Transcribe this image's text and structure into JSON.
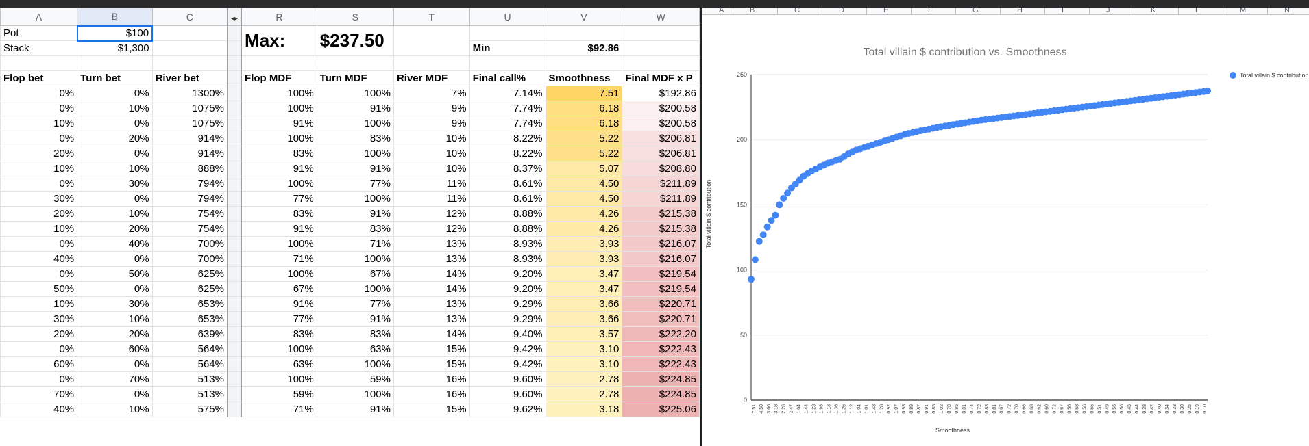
{
  "left_sheet": {
    "columns": [
      "A",
      "B",
      "C",
      "R",
      "S",
      "T",
      "U",
      "V",
      "W"
    ],
    "top": {
      "pot_label": "Pot",
      "pot_value": "$100",
      "stack_label": "Stack",
      "stack_value": "$1,300",
      "max_label": "Max:",
      "max_value": "$237.50",
      "min_label": "Min",
      "min_value": "$92.86"
    },
    "headers": [
      "Flop bet",
      "Turn bet",
      "River bet",
      "Flop MDF",
      "Turn MDF",
      "River MDF",
      "Final call%",
      "Smoothness",
      "Final MDF x P"
    ],
    "rows": [
      [
        "0%",
        "0%",
        "1300%",
        "100%",
        "100%",
        "7%",
        "7.14%",
        "7.51",
        "$192.86"
      ],
      [
        "0%",
        "10%",
        "1075%",
        "100%",
        "91%",
        "9%",
        "7.74%",
        "6.18",
        "$200.58"
      ],
      [
        "10%",
        "0%",
        "1075%",
        "91%",
        "100%",
        "9%",
        "7.74%",
        "6.18",
        "$200.58"
      ],
      [
        "0%",
        "20%",
        "914%",
        "100%",
        "83%",
        "10%",
        "8.22%",
        "5.22",
        "$206.81"
      ],
      [
        "20%",
        "0%",
        "914%",
        "83%",
        "100%",
        "10%",
        "8.22%",
        "5.22",
        "$206.81"
      ],
      [
        "10%",
        "10%",
        "888%",
        "91%",
        "91%",
        "10%",
        "8.37%",
        "5.07",
        "$208.80"
      ],
      [
        "0%",
        "30%",
        "794%",
        "100%",
        "77%",
        "11%",
        "8.61%",
        "4.50",
        "$211.89"
      ],
      [
        "30%",
        "0%",
        "794%",
        "77%",
        "100%",
        "11%",
        "8.61%",
        "4.50",
        "$211.89"
      ],
      [
        "20%",
        "10%",
        "754%",
        "83%",
        "91%",
        "12%",
        "8.88%",
        "4.26",
        "$215.38"
      ],
      [
        "10%",
        "20%",
        "754%",
        "91%",
        "83%",
        "12%",
        "8.88%",
        "4.26",
        "$215.38"
      ],
      [
        "0%",
        "40%",
        "700%",
        "100%",
        "71%",
        "13%",
        "8.93%",
        "3.93",
        "$216.07"
      ],
      [
        "40%",
        "0%",
        "700%",
        "71%",
        "100%",
        "13%",
        "8.93%",
        "3.93",
        "$216.07"
      ],
      [
        "0%",
        "50%",
        "625%",
        "100%",
        "67%",
        "14%",
        "9.20%",
        "3.47",
        "$219.54"
      ],
      [
        "50%",
        "0%",
        "625%",
        "67%",
        "100%",
        "14%",
        "9.20%",
        "3.47",
        "$219.54"
      ],
      [
        "10%",
        "30%",
        "653%",
        "91%",
        "77%",
        "13%",
        "9.29%",
        "3.66",
        "$220.71"
      ],
      [
        "30%",
        "10%",
        "653%",
        "77%",
        "91%",
        "13%",
        "9.29%",
        "3.66",
        "$220.71"
      ],
      [
        "20%",
        "20%",
        "639%",
        "83%",
        "83%",
        "14%",
        "9.40%",
        "3.57",
        "$222.20"
      ],
      [
        "0%",
        "60%",
        "564%",
        "100%",
        "63%",
        "15%",
        "9.42%",
        "3.10",
        "$222.43"
      ],
      [
        "60%",
        "0%",
        "564%",
        "63%",
        "100%",
        "15%",
        "9.42%",
        "3.10",
        "$222.43"
      ],
      [
        "0%",
        "70%",
        "513%",
        "100%",
        "59%",
        "16%",
        "9.60%",
        "2.78",
        "$224.85"
      ],
      [
        "70%",
        "0%",
        "513%",
        "59%",
        "100%",
        "16%",
        "9.60%",
        "2.78",
        "$224.85"
      ],
      [
        "40%",
        "10%",
        "575%",
        "71%",
        "91%",
        "15%",
        "9.62%",
        "3.18",
        "$225.06"
      ]
    ],
    "colors": {
      "smooth": [
        "#ffd666",
        "#ffdf80",
        "#ffdf80",
        "#ffe08a",
        "#ffe08a",
        "#ffe9a6",
        "#ffe9a6",
        "#ffe9a6",
        "#ffeaa8",
        "#ffeaa8",
        "#ffeeb3",
        "#ffeeb3",
        "#fff0b8",
        "#fff0b8",
        "#ffefb5",
        "#ffefb5",
        "#fff0b8",
        "#fff2bd",
        "#fff2bd",
        "#fff2bf",
        "#fff2bf",
        "#fff1ba"
      ],
      "mdf": [
        "#ffffff",
        "#fcefef",
        "#fcefef",
        "#f8e0e0",
        "#f8e0e0",
        "#f7dcdc",
        "#f6d5d5",
        "#f6d5d5",
        "#f4cbcb",
        "#f4cbcb",
        "#f4c9c9",
        "#f4c9c9",
        "#f2c0c0",
        "#f2c0c0",
        "#f1bdbd",
        "#f1bdbd",
        "#f0b9b9",
        "#f0b8b8",
        "#f0b8b8",
        "#efb2b2",
        "#efb2b2",
        "#eeb1b1"
      ]
    }
  },
  "right_sheet": {
    "columns": [
      "A",
      "B",
      "C",
      "D",
      "E",
      "F",
      "G",
      "H",
      "I",
      "J",
      "K",
      "L",
      "M",
      "N"
    ]
  },
  "chart_data": {
    "type": "scatter",
    "title": "Total villain $ contribution vs. Smoothness",
    "xlabel": "Smoothness",
    "ylabel": "Total villain $ contribution",
    "legend": [
      "Total villain $ contribution"
    ],
    "legend_position": "top-right",
    "ylim": [
      0,
      250
    ],
    "yticks": [
      0,
      50,
      100,
      150,
      200,
      250
    ],
    "grid": true,
    "color": "#4285f4",
    "x_tick_labels": [
      "7.51",
      "4.50",
      "3.66",
      "3.18",
      "2.28",
      "2.47",
      "1.64",
      "1.44",
      "1.23",
      "1.98",
      "1.13",
      "1.36",
      "1.26",
      "1.12",
      "1.04",
      "1.01",
      "1.43",
      "1.28",
      "0.92",
      "1.07",
      "0.93",
      "0.89",
      "0.87",
      "0.91",
      "0.85",
      "1.02",
      "0.78",
      "0.85",
      "0.81",
      "0.74",
      "0.72",
      "0.83",
      "0.81",
      "0.67",
      "0.72",
      "0.70",
      "0.66",
      "0.63",
      "0.62",
      "0.60",
      "0.72",
      "0.67",
      "0.56",
      "0.68",
      "0.56",
      "0.55",
      "0.51",
      "0.49",
      "0.56",
      "0.56",
      "0.45",
      "0.44",
      "0.38",
      "0.42",
      "0.40",
      "0.34",
      "0.33",
      "0.30",
      "0.25",
      "0.19",
      "0.10"
    ],
    "points_y": [
      92.86,
      108,
      122,
      127,
      133,
      138,
      142,
      150,
      155,
      159,
      163,
      166,
      169,
      172,
      174,
      176,
      177.5,
      179,
      180.5,
      182,
      183,
      184,
      185,
      187,
      189,
      190.5,
      192,
      193,
      194,
      195,
      196,
      197,
      198,
      199,
      200,
      201,
      202,
      203,
      204,
      204.8,
      205.5,
      206.2,
      206.9,
      207.5,
      208.1,
      208.7,
      209.3,
      209.9,
      210.5,
      211,
      211.5,
      212,
      212.5,
      213,
      213.5,
      214,
      214.5,
      215,
      215.4,
      215.8,
      216.2,
      216.6,
      217,
      217.4,
      217.8,
      218.2,
      218.6,
      219,
      219.4,
      219.8,
      220.2,
      220.6,
      221,
      221.4,
      221.8,
      222.2,
      222.6,
      223,
      223.4,
      223.8,
      224.2,
      224.6,
      225,
      225.4,
      225.8,
      226.2,
      226.6,
      227,
      227.4,
      227.8,
      228.2,
      228.6,
      229,
      229.4,
      229.8,
      230.2,
      230.6,
      231,
      231.4,
      231.8,
      232.2,
      232.6,
      233,
      233.4,
      233.8,
      234.2,
      234.6,
      235,
      235.4,
      235.8,
      236.2,
      236.6,
      237,
      237.5
    ]
  }
}
